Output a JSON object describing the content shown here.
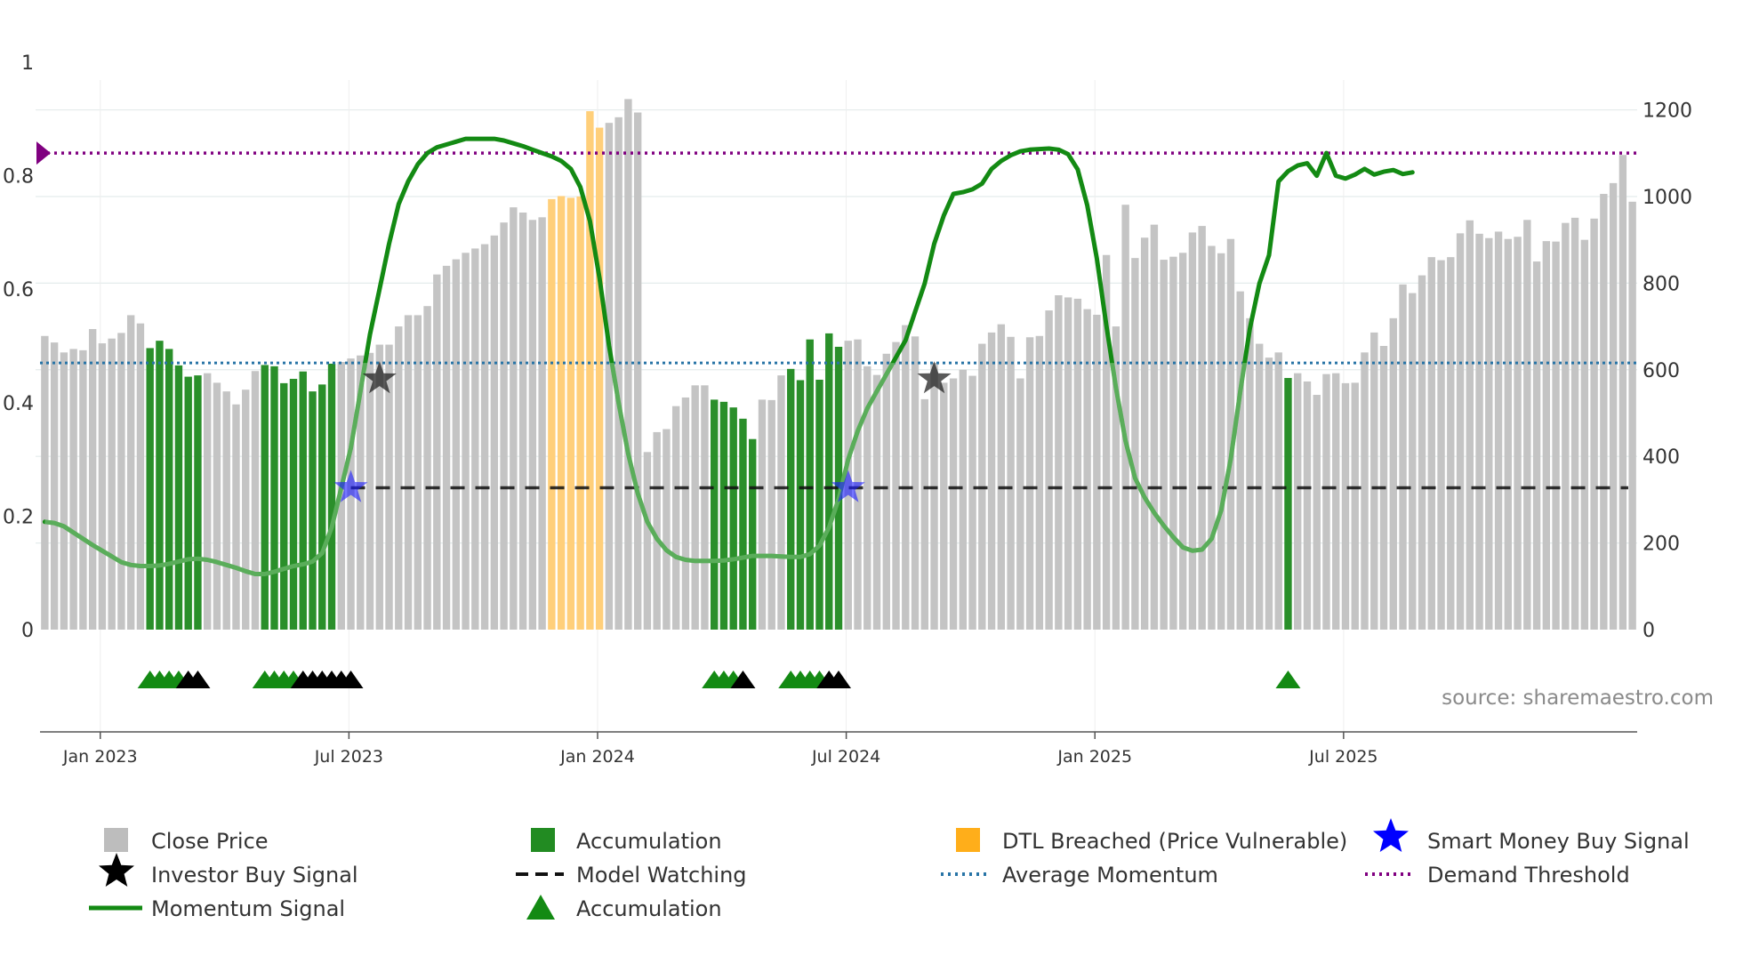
{
  "chart_data": {
    "type": "bar",
    "title": "",
    "source": "source: sharemaestro.com",
    "x_ticks": [
      "Jan 2023",
      "Jul 2023",
      "Jan 2024",
      "Jul 2024",
      "Jan 2025",
      "Jul 2025"
    ],
    "x_tick_weeks": [
      6,
      32,
      58,
      84,
      110,
      136
    ],
    "left_axis": {
      "ylim": [
        0,
        1
      ],
      "ticks": [
        0,
        0.2,
        0.4,
        0.6,
        0.8,
        1
      ],
      "tick_labels": [
        "0",
        "0.2",
        "0.4",
        "0.6",
        "0.8",
        "1"
      ]
    },
    "right_axis": {
      "ylim": [
        0,
        1310
      ],
      "ticks": [
        0,
        200,
        400,
        600,
        800,
        1000,
        1200
      ],
      "tick_labels": [
        "0",
        "200",
        "400",
        "600",
        "800",
        "1000",
        "1200"
      ]
    },
    "close_price": [
      678,
      663,
      640,
      648,
      645,
      694,
      661,
      672,
      685,
      726,
      707,
      650,
      667,
      648,
      610,
      584,
      587,
      592,
      570,
      550,
      520,
      554,
      597,
      611,
      608,
      569,
      579,
      596,
      550,
      566,
      614,
      618,
      626,
      633,
      639,
      658,
      658,
      700,
      726,
      726,
      747,
      820,
      840,
      855,
      870,
      880,
      890,
      910,
      940,
      975,
      963,
      946,
      952,
      994,
      1001,
      997,
      1000,
      1197,
      1159,
      1170,
      1183,
      1225,
      1194,
      410,
      456,
      463,
      516,
      536,
      564,
      564,
      531,
      526,
      513,
      487,
      440,
      531,
      530,
      587,
      602,
      576,
      670,
      577,
      684,
      653,
      667,
      670,
      608,
      588,
      637,
      664,
      703,
      677,
      532,
      616,
      570,
      580,
      600,
      586,
      660,
      686,
      705,
      676,
      580,
      675,
      678,
      737,
      772,
      767,
      764,
      740,
      727,
      865,
      700,
      981,
      858,
      905,
      935,
      854,
      861,
      870,
      917,
      932,
      886,
      869,
      902,
      781,
      719,
      660,
      628,
      640,
      581,
      592,
      573,
      542,
      590,
      592,
      569,
      570,
      640,
      686,
      655,
      719,
      797,
      777,
      818,
      860,
      853,
      860,
      915,
      945,
      914,
      904,
      919,
      902,
      907,
      946,
      850,
      897,
      896,
      939,
      951,
      900,
      949,
      1006,
      1031,
      1096,
      988
    ],
    "series": [
      {
        "name": "Momentum Signal",
        "color": "#138a13",
        "values": [
          0.19,
          0.188,
          0.182,
          0.171,
          0.16,
          0.149,
          0.139,
          0.129,
          0.119,
          0.114,
          0.112,
          0.112,
          0.113,
          0.116,
          0.12,
          0.124,
          0.125,
          0.123,
          0.119,
          0.114,
          0.109,
          0.103,
          0.098,
          0.098,
          0.102,
          0.107,
          0.112,
          0.115,
          0.12,
          0.135,
          0.18,
          0.25,
          0.32,
          0.42,
          0.52,
          0.6,
          0.68,
          0.75,
          0.79,
          0.82,
          0.84,
          0.85,
          0.855,
          0.86,
          0.865,
          0.865,
          0.865,
          0.865,
          0.862,
          0.857,
          0.852,
          0.846,
          0.84,
          0.834,
          0.826,
          0.812,
          0.78,
          0.72,
          0.62,
          0.5,
          0.4,
          0.31,
          0.24,
          0.19,
          0.16,
          0.14,
          0.128,
          0.123,
          0.121,
          0.121,
          0.121,
          0.122,
          0.124,
          0.127,
          0.13,
          0.13,
          0.13,
          0.129,
          0.128,
          0.128,
          0.133,
          0.148,
          0.18,
          0.23,
          0.3,
          0.35,
          0.39,
          0.42,
          0.45,
          0.48,
          0.51,
          0.56,
          0.61,
          0.68,
          0.73,
          0.768,
          0.771,
          0.776,
          0.786,
          0.812,
          0.826,
          0.836,
          0.843,
          0.846,
          0.847,
          0.848,
          0.846,
          0.838,
          0.811,
          0.748,
          0.654,
          0.536,
          0.426,
          0.333,
          0.267,
          0.233,
          0.206,
          0.183,
          0.163,
          0.145,
          0.139,
          0.141,
          0.16,
          0.21,
          0.3,
          0.42,
          0.53,
          0.61,
          0.66,
          0.79,
          0.808,
          0.818,
          0.822,
          0.8,
          0.84,
          0.8,
          0.795,
          0.802,
          0.812,
          0.802,
          0.807,
          0.81,
          0.803,
          0.806
        ]
      },
      {
        "name": "Average Momentum",
        "color": "#2874a6",
        "value": 0.47
      },
      {
        "name": "Demand Threshold",
        "color": "#800080",
        "value": 0.84
      },
      {
        "name": "Model Watching",
        "color": "#111111",
        "value": 0.25
      }
    ],
    "accumulation_bar_weeks": [
      11,
      12,
      13,
      14,
      15,
      16,
      23,
      24,
      25,
      26,
      27,
      28,
      29,
      30,
      70,
      71,
      72,
      73,
      74,
      78,
      79,
      80,
      81,
      82,
      83,
      130
    ],
    "dtl_breached_weeks": [
      53,
      54,
      55,
      56,
      57,
      58
    ],
    "investor_buy_signal_weeks": [
      35,
      93
    ],
    "smart_money_buy_signal_weeks": [
      32,
      84
    ],
    "accumulation_marker_weeks": {
      "green": [
        11,
        12,
        13,
        14,
        23,
        24,
        25,
        26,
        70,
        71,
        72,
        78,
        79,
        80,
        81,
        130
      ],
      "black": [
        15,
        16,
        27,
        28,
        29,
        30,
        31,
        32,
        73,
        82,
        83
      ]
    },
    "legend": [
      {
        "label": "Close Price",
        "marker": "square",
        "color": "#bdbdbd"
      },
      {
        "label": "Accumulation",
        "marker": "square",
        "color": "#228b22"
      },
      {
        "label": "DTL Breached (Price Vulnerable)",
        "marker": "square",
        "color": "#ffae1a"
      },
      {
        "label": "Smart Money Buy Signal",
        "marker": "star",
        "color": "#0000ff"
      },
      {
        "label": "Investor Buy Signal",
        "marker": "star",
        "color": "#000000"
      },
      {
        "label": "Model Watching",
        "marker": "dash",
        "color": "#111111"
      },
      {
        "label": "Average Momentum",
        "marker": "dot",
        "color": "#2874a6"
      },
      {
        "label": "Demand Threshold",
        "marker": "dot",
        "color": "#800080"
      },
      {
        "label": "Momentum Signal",
        "marker": "line",
        "color": "#138a13"
      },
      {
        "label": "Accumulation",
        "marker": "triangle",
        "color": "#138a13"
      }
    ]
  }
}
